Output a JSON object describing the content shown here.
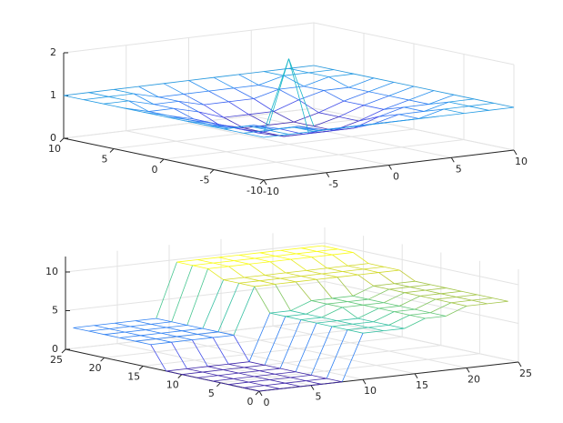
{
  "chart_data": [
    {
      "type": "mesh",
      "x": [
        -10,
        -8,
        -6,
        -4,
        -2,
        0,
        2,
        4,
        6,
        8,
        10
      ],
      "y": [
        -10,
        -8,
        -6,
        -4,
        -2,
        0,
        2,
        4,
        6,
        8,
        10
      ],
      "z": [
        [
          1,
          1,
          1,
          1,
          1,
          1,
          1,
          1,
          1,
          1,
          1
        ],
        [
          1,
          1,
          1,
          0.85,
          0.85,
          0.85,
          0.85,
          0.85,
          1,
          1,
          1
        ],
        [
          1,
          1,
          0.85,
          0.85,
          0.7,
          0.7,
          0.7,
          0.85,
          0.85,
          1,
          1
        ],
        [
          1,
          0.85,
          0.85,
          0.7,
          0.5,
          0.5,
          0.5,
          0.7,
          0.85,
          0.85,
          1
        ],
        [
          1,
          0.85,
          0.7,
          0.5,
          0.35,
          0.35,
          0.35,
          0.5,
          0.7,
          0.85,
          1
        ],
        [
          1,
          0.85,
          0.7,
          0.5,
          0.35,
          2,
          0.35,
          0.5,
          0.7,
          0.85,
          1
        ],
        [
          1,
          0.85,
          0.7,
          0.5,
          0.35,
          0.35,
          0.35,
          0.5,
          0.7,
          0.85,
          1
        ],
        [
          1,
          0.85,
          0.85,
          0.7,
          0.5,
          0.5,
          0.5,
          0.7,
          0.85,
          0.85,
          1
        ],
        [
          1,
          1,
          0.85,
          0.85,
          0.7,
          0.7,
          0.7,
          0.85,
          0.85,
          1,
          1
        ],
        [
          1,
          1,
          1,
          0.85,
          0.85,
          0.85,
          0.85,
          0.85,
          1,
          1,
          1
        ],
        [
          1,
          1,
          1,
          1,
          1,
          1,
          1,
          1,
          1,
          1,
          1
        ]
      ],
      "xlim": [
        -10,
        10
      ],
      "ylim": [
        -10,
        10
      ],
      "zlim": [
        0,
        2
      ],
      "xticks": [
        -10,
        -5,
        0,
        5,
        10
      ],
      "yticks": [
        -10,
        -5,
        0,
        5,
        10
      ],
      "zticks": [
        0,
        1,
        2
      ],
      "grid": true,
      "colormap": [
        "#3e26a8",
        "#4352f0",
        "#2a8bf2",
        "#14b5c8",
        "#4cc88a",
        "#b8c335",
        "#f9fb15"
      ]
    },
    {
      "type": "mesh",
      "x": [
        0,
        2,
        4,
        6,
        8,
        10,
        12,
        14,
        16,
        18,
        20,
        22,
        24
      ],
      "y": [
        0,
        2,
        4,
        6,
        8,
        10,
        12,
        14,
        16,
        18,
        20,
        22,
        24
      ],
      "z": [
        [
          0,
          0,
          0,
          0,
          0,
          6,
          6,
          6,
          7,
          7,
          8,
          8,
          8
        ],
        [
          0,
          0,
          0,
          0,
          0,
          6,
          6,
          6,
          7,
          7,
          8,
          8,
          8
        ],
        [
          0,
          0,
          0,
          0,
          0,
          6,
          6,
          6,
          7,
          7,
          8,
          8,
          8
        ],
        [
          0,
          0,
          0,
          0,
          0,
          6,
          6,
          6,
          7,
          7,
          8,
          8,
          8
        ],
        [
          0,
          0,
          0,
          0,
          0,
          6,
          6,
          7,
          7,
          7,
          8,
          8,
          8
        ],
        [
          0,
          0,
          0,
          0,
          0,
          6,
          6,
          7,
          7,
          7,
          8,
          8,
          8
        ],
        [
          0,
          0,
          0,
          0,
          0,
          6,
          6,
          7,
          7,
          7,
          8,
          8,
          8
        ],
        [
          3,
          3,
          3,
          3,
          3,
          9,
          9,
          9,
          9,
          9,
          9,
          9,
          9
        ],
        [
          3,
          3,
          3,
          3,
          3,
          9,
          9,
          9,
          9,
          9,
          9,
          9,
          9
        ],
        [
          3,
          3,
          3,
          3,
          3,
          9,
          9,
          9,
          9,
          9,
          9,
          9,
          9
        ],
        [
          3,
          3,
          3,
          3,
          3,
          10,
          10,
          10,
          10,
          10,
          10,
          10,
          10
        ],
        [
          3,
          3,
          3,
          3,
          3,
          10,
          10,
          10,
          10,
          10,
          10,
          10,
          10
        ],
        [
          3,
          3,
          3,
          3,
          3,
          10,
          10,
          10,
          10,
          10,
          10,
          10,
          10
        ]
      ],
      "xlim": [
        0,
        25
      ],
      "ylim": [
        0,
        25
      ],
      "zlim": [
        0,
        12
      ],
      "xticks": [
        0,
        5,
        10,
        15,
        20,
        25
      ],
      "yticks": [
        0,
        5,
        10,
        15,
        20,
        25
      ],
      "zticks": [
        0,
        5,
        10
      ],
      "grid": true,
      "colormap": [
        "#3e26a8",
        "#4352f0",
        "#2a8bf2",
        "#14b5c8",
        "#4cc88a",
        "#b8c335",
        "#f9fb15"
      ]
    }
  ]
}
